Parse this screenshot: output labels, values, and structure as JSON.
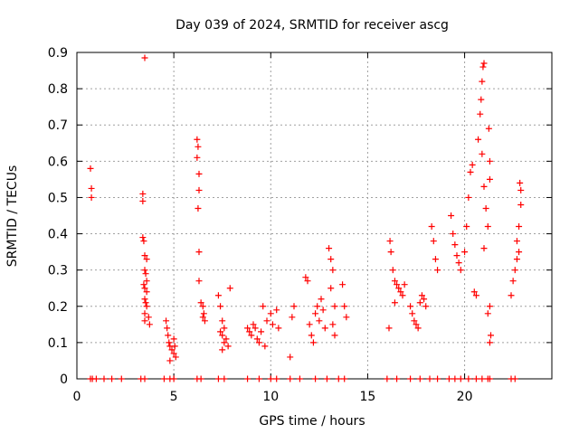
{
  "chart_data": {
    "type": "scatter",
    "title": "Day 039 of 2024, SRMTID for receiver ascg",
    "xlabel": "GPS time / hours",
    "ylabel": "SRMTID / TECUs",
    "xlim": [
      0,
      24.5
    ],
    "ylim": [
      0,
      0.9
    ],
    "xticks": [
      0,
      5,
      10,
      15,
      20
    ],
    "xtick_labels": [
      "0",
      "5",
      "10",
      "15",
      "20"
    ],
    "yticks": [
      0,
      0.1,
      0.2,
      0.3,
      0.4,
      0.5,
      0.6,
      0.7,
      0.8,
      0.9
    ],
    "ytick_labels": [
      "0",
      "0.1",
      "0.2",
      "0.3",
      "0.4",
      "0.5",
      "0.6",
      "0.7",
      "0.8",
      "0.9"
    ],
    "grid": true,
    "marker": "+",
    "color": "#ff0000",
    "series": [
      {
        "name": "SRMTID",
        "points": [
          [
            0.7,
            0.58
          ],
          [
            0.75,
            0.525
          ],
          [
            0.75,
            0.5
          ],
          [
            0.7,
            0.0
          ],
          [
            0.8,
            0.0
          ],
          [
            1.0,
            0.0
          ],
          [
            1.4,
            0.0
          ],
          [
            1.8,
            0.0
          ],
          [
            2.3,
            0.0
          ],
          [
            3.5,
            0.885
          ],
          [
            3.4,
            0.51
          ],
          [
            3.4,
            0.49
          ],
          [
            3.4,
            0.39
          ],
          [
            3.45,
            0.38
          ],
          [
            3.5,
            0.34
          ],
          [
            3.6,
            0.33
          ],
          [
            3.5,
            0.3
          ],
          [
            3.55,
            0.29
          ],
          [
            3.6,
            0.27
          ],
          [
            3.45,
            0.26
          ],
          [
            3.5,
            0.25
          ],
          [
            3.6,
            0.24
          ],
          [
            3.5,
            0.22
          ],
          [
            3.55,
            0.21
          ],
          [
            3.6,
            0.2
          ],
          [
            3.5,
            0.18
          ],
          [
            3.7,
            0.17
          ],
          [
            3.5,
            0.16
          ],
          [
            3.75,
            0.15
          ],
          [
            3.3,
            0.0
          ],
          [
            3.5,
            0.0
          ],
          [
            4.6,
            0.16
          ],
          [
            4.65,
            0.14
          ],
          [
            4.7,
            0.12
          ],
          [
            4.75,
            0.1
          ],
          [
            4.8,
            0.09
          ],
          [
            4.9,
            0.08
          ],
          [
            5.0,
            0.07
          ],
          [
            5.1,
            0.06
          ],
          [
            4.8,
            0.05
          ],
          [
            5.0,
            0.11
          ],
          [
            5.05,
            0.09
          ],
          [
            4.5,
            0.0
          ],
          [
            4.8,
            0.0
          ],
          [
            5.0,
            0.0
          ],
          [
            6.2,
            0.66
          ],
          [
            6.25,
            0.64
          ],
          [
            6.2,
            0.61
          ],
          [
            6.3,
            0.565
          ],
          [
            6.3,
            0.52
          ],
          [
            6.25,
            0.47
          ],
          [
            6.3,
            0.35
          ],
          [
            6.3,
            0.27
          ],
          [
            6.4,
            0.21
          ],
          [
            6.5,
            0.2
          ],
          [
            6.55,
            0.18
          ],
          [
            6.5,
            0.17
          ],
          [
            6.6,
            0.16
          ],
          [
            6.2,
            0.0
          ],
          [
            6.4,
            0.0
          ],
          [
            7.3,
            0.23
          ],
          [
            7.4,
            0.2
          ],
          [
            7.5,
            0.16
          ],
          [
            7.6,
            0.14
          ],
          [
            7.4,
            0.13
          ],
          [
            7.5,
            0.12
          ],
          [
            7.7,
            0.11
          ],
          [
            7.6,
            0.1
          ],
          [
            7.8,
            0.09
          ],
          [
            7.9,
            0.25
          ],
          [
            7.5,
            0.08
          ],
          [
            7.3,
            0.0
          ],
          [
            7.6,
            0.0
          ],
          [
            8.8,
            0.14
          ],
          [
            8.9,
            0.13
          ],
          [
            9.0,
            0.12
          ],
          [
            9.1,
            0.15
          ],
          [
            9.2,
            0.14
          ],
          [
            9.3,
            0.11
          ],
          [
            9.4,
            0.1
          ],
          [
            9.5,
            0.13
          ],
          [
            9.6,
            0.2
          ],
          [
            9.7,
            0.09
          ],
          [
            9.8,
            0.16
          ],
          [
            10.0,
            0.18
          ],
          [
            10.1,
            0.15
          ],
          [
            10.3,
            0.19
          ],
          [
            10.4,
            0.14
          ],
          [
            8.8,
            0.0
          ],
          [
            9.4,
            0.0
          ],
          [
            10.0,
            0.0
          ],
          [
            10.3,
            0.0
          ],
          [
            11.0,
            0.06
          ],
          [
            11.1,
            0.17
          ],
          [
            11.2,
            0.2
          ],
          [
            11.8,
            0.28
          ],
          [
            11.9,
            0.27
          ],
          [
            12.0,
            0.15
          ],
          [
            12.1,
            0.12
          ],
          [
            12.2,
            0.1
          ],
          [
            12.3,
            0.18
          ],
          [
            12.4,
            0.2
          ],
          [
            12.5,
            0.16
          ],
          [
            12.6,
            0.22
          ],
          [
            12.7,
            0.19
          ],
          [
            12.8,
            0.14
          ],
          [
            13.0,
            0.36
          ],
          [
            13.1,
            0.33
          ],
          [
            13.2,
            0.3
          ],
          [
            13.1,
            0.25
          ],
          [
            13.3,
            0.2
          ],
          [
            13.2,
            0.15
          ],
          [
            13.3,
            0.12
          ],
          [
            13.7,
            0.26
          ],
          [
            13.8,
            0.2
          ],
          [
            13.9,
            0.17
          ],
          [
            11.0,
            0.0
          ],
          [
            11.5,
            0.0
          ],
          [
            12.3,
            0.0
          ],
          [
            12.9,
            0.0
          ],
          [
            13.5,
            0.0
          ],
          [
            13.8,
            0.0
          ],
          [
            16.1,
            0.14
          ],
          [
            16.15,
            0.38
          ],
          [
            16.2,
            0.35
          ],
          [
            16.3,
            0.3
          ],
          [
            16.4,
            0.27
          ],
          [
            16.5,
            0.26
          ],
          [
            16.6,
            0.25
          ],
          [
            16.7,
            0.24
          ],
          [
            16.8,
            0.23
          ],
          [
            16.9,
            0.26
          ],
          [
            16.4,
            0.21
          ],
          [
            16.0,
            0.0
          ],
          [
            16.5,
            0.0
          ],
          [
            17.2,
            0.2
          ],
          [
            17.3,
            0.18
          ],
          [
            17.4,
            0.16
          ],
          [
            17.5,
            0.15
          ],
          [
            17.6,
            0.14
          ],
          [
            17.7,
            0.21
          ],
          [
            17.8,
            0.23
          ],
          [
            17.9,
            0.22
          ],
          [
            18.0,
            0.2
          ],
          [
            18.3,
            0.42
          ],
          [
            18.4,
            0.38
          ],
          [
            18.5,
            0.33
          ],
          [
            18.6,
            0.3
          ],
          [
            17.2,
            0.0
          ],
          [
            17.7,
            0.0
          ],
          [
            18.2,
            0.0
          ],
          [
            18.6,
            0.0
          ],
          [
            19.3,
            0.45
          ],
          [
            19.4,
            0.4
          ],
          [
            19.5,
            0.37
          ],
          [
            19.6,
            0.34
          ],
          [
            19.7,
            0.32
          ],
          [
            19.8,
            0.3
          ],
          [
            20.0,
            0.35
          ],
          [
            20.1,
            0.42
          ],
          [
            20.2,
            0.5
          ],
          [
            20.3,
            0.57
          ],
          [
            20.4,
            0.59
          ],
          [
            20.5,
            0.24
          ],
          [
            20.6,
            0.23
          ],
          [
            20.7,
            0.66
          ],
          [
            20.8,
            0.73
          ],
          [
            20.85,
            0.77
          ],
          [
            20.9,
            0.82
          ],
          [
            20.95,
            0.86
          ],
          [
            21.0,
            0.87
          ],
          [
            20.9,
            0.62
          ],
          [
            21.0,
            0.53
          ],
          [
            21.1,
            0.47
          ],
          [
            21.2,
            0.42
          ],
          [
            21.3,
            0.6
          ],
          [
            21.25,
            0.69
          ],
          [
            21.3,
            0.55
          ],
          [
            21.0,
            0.36
          ],
          [
            21.3,
            0.2
          ],
          [
            21.35,
            0.12
          ],
          [
            21.3,
            0.1
          ],
          [
            21.2,
            0.18
          ],
          [
            19.2,
            0.0
          ],
          [
            19.5,
            0.0
          ],
          [
            19.8,
            0.0
          ],
          [
            20.2,
            0.0
          ],
          [
            20.6,
            0.0
          ],
          [
            20.9,
            0.0
          ],
          [
            21.2,
            0.0
          ],
          [
            21.3,
            0.0
          ],
          [
            22.4,
            0.23
          ],
          [
            22.5,
            0.27
          ],
          [
            22.6,
            0.3
          ],
          [
            22.7,
            0.33
          ],
          [
            22.8,
            0.35
          ],
          [
            22.7,
            0.38
          ],
          [
            22.8,
            0.42
          ],
          [
            22.9,
            0.48
          ],
          [
            22.9,
            0.52
          ],
          [
            22.85,
            0.54
          ],
          [
            22.4,
            0.0
          ],
          [
            22.6,
            0.0
          ]
        ]
      }
    ]
  }
}
